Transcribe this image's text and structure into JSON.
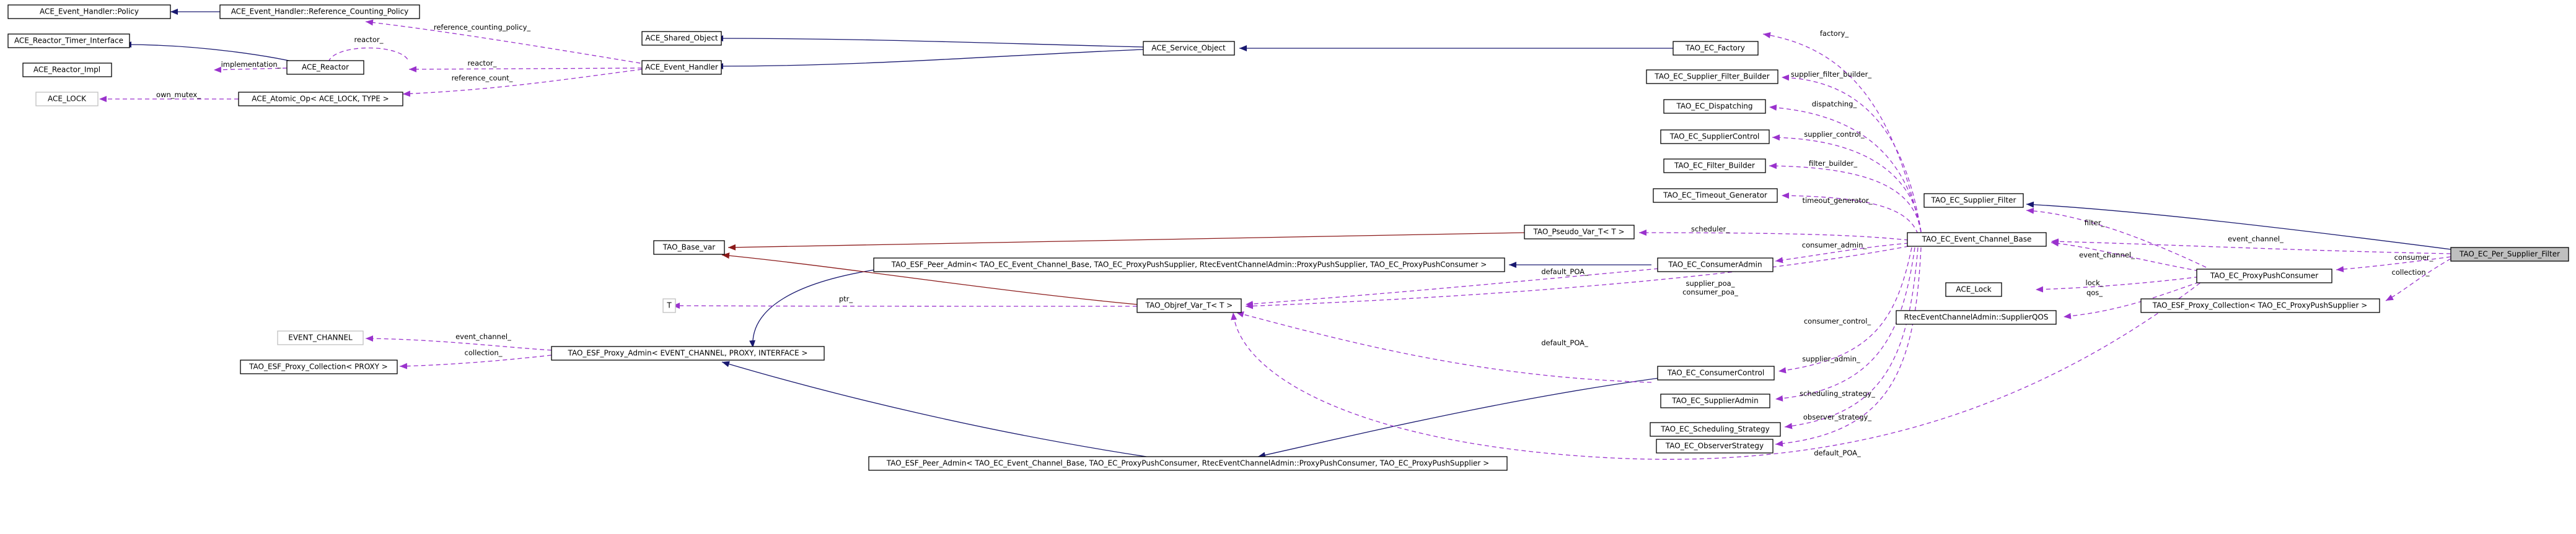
{
  "nodes": {
    "ace_event_handler_policy": "ACE_Event_Handler::Policy",
    "ace_eh_refcount_policy": "ACE_Event_Handler::Reference_Counting_Policy",
    "ace_reactor_timer_interface": "ACE_Reactor_Timer_Interface",
    "ace_reactor_impl": "ACE_Reactor_Impl",
    "ace_reactor": "ACE_Reactor",
    "ace_lock": "ACE_LOCK",
    "ace_atomic_op": "ACE_Atomic_Op< ACE_LOCK, TYPE >",
    "ace_shared_object": "ACE_Shared_Object",
    "ace_event_handler": "ACE_Event_Handler",
    "ace_service_object": "ACE_Service_Object",
    "tao_ec_factory": "TAO_EC_Factory",
    "tao_ec_supplier_filter_builder": "TAO_EC_Supplier_Filter_Builder",
    "tao_ec_dispatching": "TAO_EC_Dispatching",
    "tao_ec_suppliercontrol": "TAO_EC_SupplierControl",
    "tao_ec_filter_builder": "TAO_EC_Filter_Builder",
    "tao_ec_timeout_generator": "TAO_EC_Timeout_Generator",
    "tao_pseudo_var": "TAO_Pseudo_Var_T< T >",
    "tao_base_var": "TAO_Base_var",
    "tao_esf_peer_admin_supplier": "TAO_ESF_Peer_Admin< TAO_EC_Event_Channel_Base, TAO_EC_ProxyPushSupplier, RtecEventChannelAdmin::ProxyPushSupplier, TAO_EC_ProxyPushConsumer >",
    "tao_ec_consumeradmin": "TAO_EC_ConsumerAdmin",
    "t_param": "T",
    "tao_objref_var": "TAO_Objref_Var_T< T >",
    "event_channel": "EVENT_CHANNEL",
    "tao_esf_proxy_admin": "TAO_ESF_Proxy_Admin< EVENT_CHANNEL, PROXY, INTERFACE >",
    "tao_esf_proxy_collection": "TAO_ESF_Proxy_Collection< PROXY >",
    "tao_ec_consumercontrol": "TAO_EC_ConsumerControl",
    "tao_ec_supplieradmin": "TAO_EC_SupplierAdmin",
    "tao_ec_scheduling_strategy": "TAO_EC_Scheduling_Strategy",
    "tao_ec_observerstrategy": "TAO_EC_ObserverStrategy",
    "tao_esf_peer_admin_consumer": "TAO_ESF_Peer_Admin< TAO_EC_Event_Channel_Base, TAO_EC_ProxyPushConsumer, RtecEventChannelAdmin::ProxyPushConsumer, TAO_EC_ProxyPushSupplier >",
    "tao_ec_event_channel_base": "TAO_EC_Event_Channel_Base",
    "tao_ec_supplier_filter": "TAO_EC_Supplier_Filter",
    "ace_lock_class": "ACE_Lock",
    "rtec_supplierqos": "RtecEventChannelAdmin::SupplierQOS",
    "tao_ec_proxypushconsumer": "TAO_EC_ProxyPushConsumer",
    "tao_esf_proxy_collection_supplier": "TAO_ESF_Proxy_Collection< TAO_EC_ProxyPushSupplier >",
    "tao_ec_per_supplier_filter": "TAO_EC_Per_Supplier_Filter"
  },
  "labels": {
    "reference_counting_policy": "reference_counting_policy_",
    "reactor_self": "reactor_",
    "implementation": "implementation_",
    "reactor": "reactor_",
    "own_mutex": "own_mutex_",
    "reference_count": "reference_count_",
    "factory": "factory_",
    "supplier_filter_builder": "supplier_filter_builder_",
    "dispatching": "dispatching_",
    "supplier_control": "supplier_control_",
    "filter_builder": "filter_builder_",
    "timeout_generator": "timeout_generator_",
    "scheduler": "scheduler_",
    "consumer_admin": "consumer_admin_",
    "default_poa_1": "default_POA_",
    "ptr": "ptr_",
    "supplier_poa": "supplier_poa_",
    "consumer_poa": "consumer_poa_",
    "event_channel_admin": "event_channel_",
    "collection_admin": "collection_",
    "consumer_control": "consumer_control_",
    "default_poa_2": "default_POA_",
    "supplier_admin": "supplier_admin_",
    "scheduling_strategy": "scheduling_strategy_",
    "observer_strategy": "observer_strategy_",
    "default_poa_3": "default_POA_",
    "filter": "filter_",
    "event_channel_ppc": "event_channel_",
    "lock": "lock_",
    "qos": "qos_",
    "event_channel_psf": "event_channel_",
    "consumer": "consumer_",
    "collection_psf": "collection_"
  },
  "colors": {
    "inheritance": "#191970",
    "inheritance_template": "#8b1a1a",
    "usage": "#9a32cd",
    "focus_fill": "#bfbfbf"
  }
}
